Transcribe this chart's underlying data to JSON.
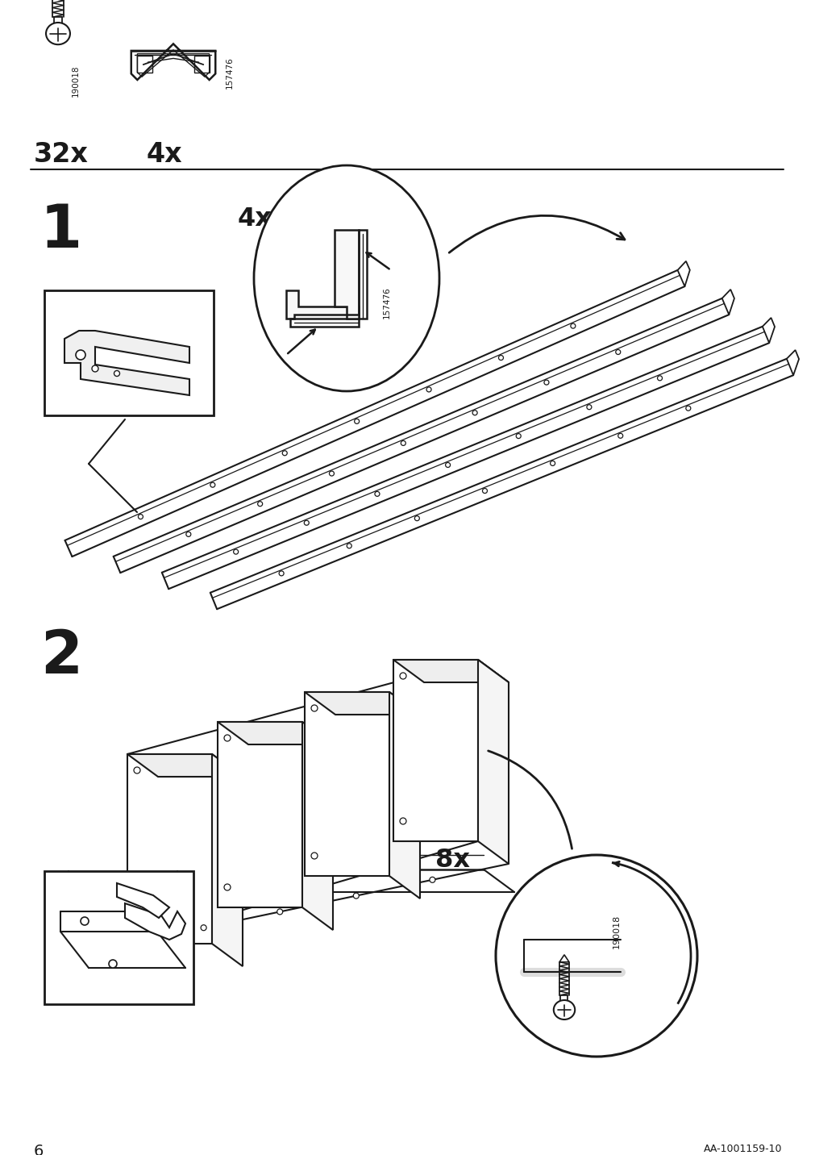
{
  "page_number": "6",
  "doc_id": "AA-1001159-10",
  "background_color": "#ffffff",
  "line_color": "#1a1a1a",
  "text_color": "#1a1a1a",
  "part1_count": "32x",
  "part1_id": "190018",
  "part2_count": "4x",
  "part2_id": "157476",
  "step1_label": "1",
  "step1_bracket_count": "4x",
  "step2_label": "2",
  "step2_screw_count": "8x",
  "step2_screw_id": "190018"
}
